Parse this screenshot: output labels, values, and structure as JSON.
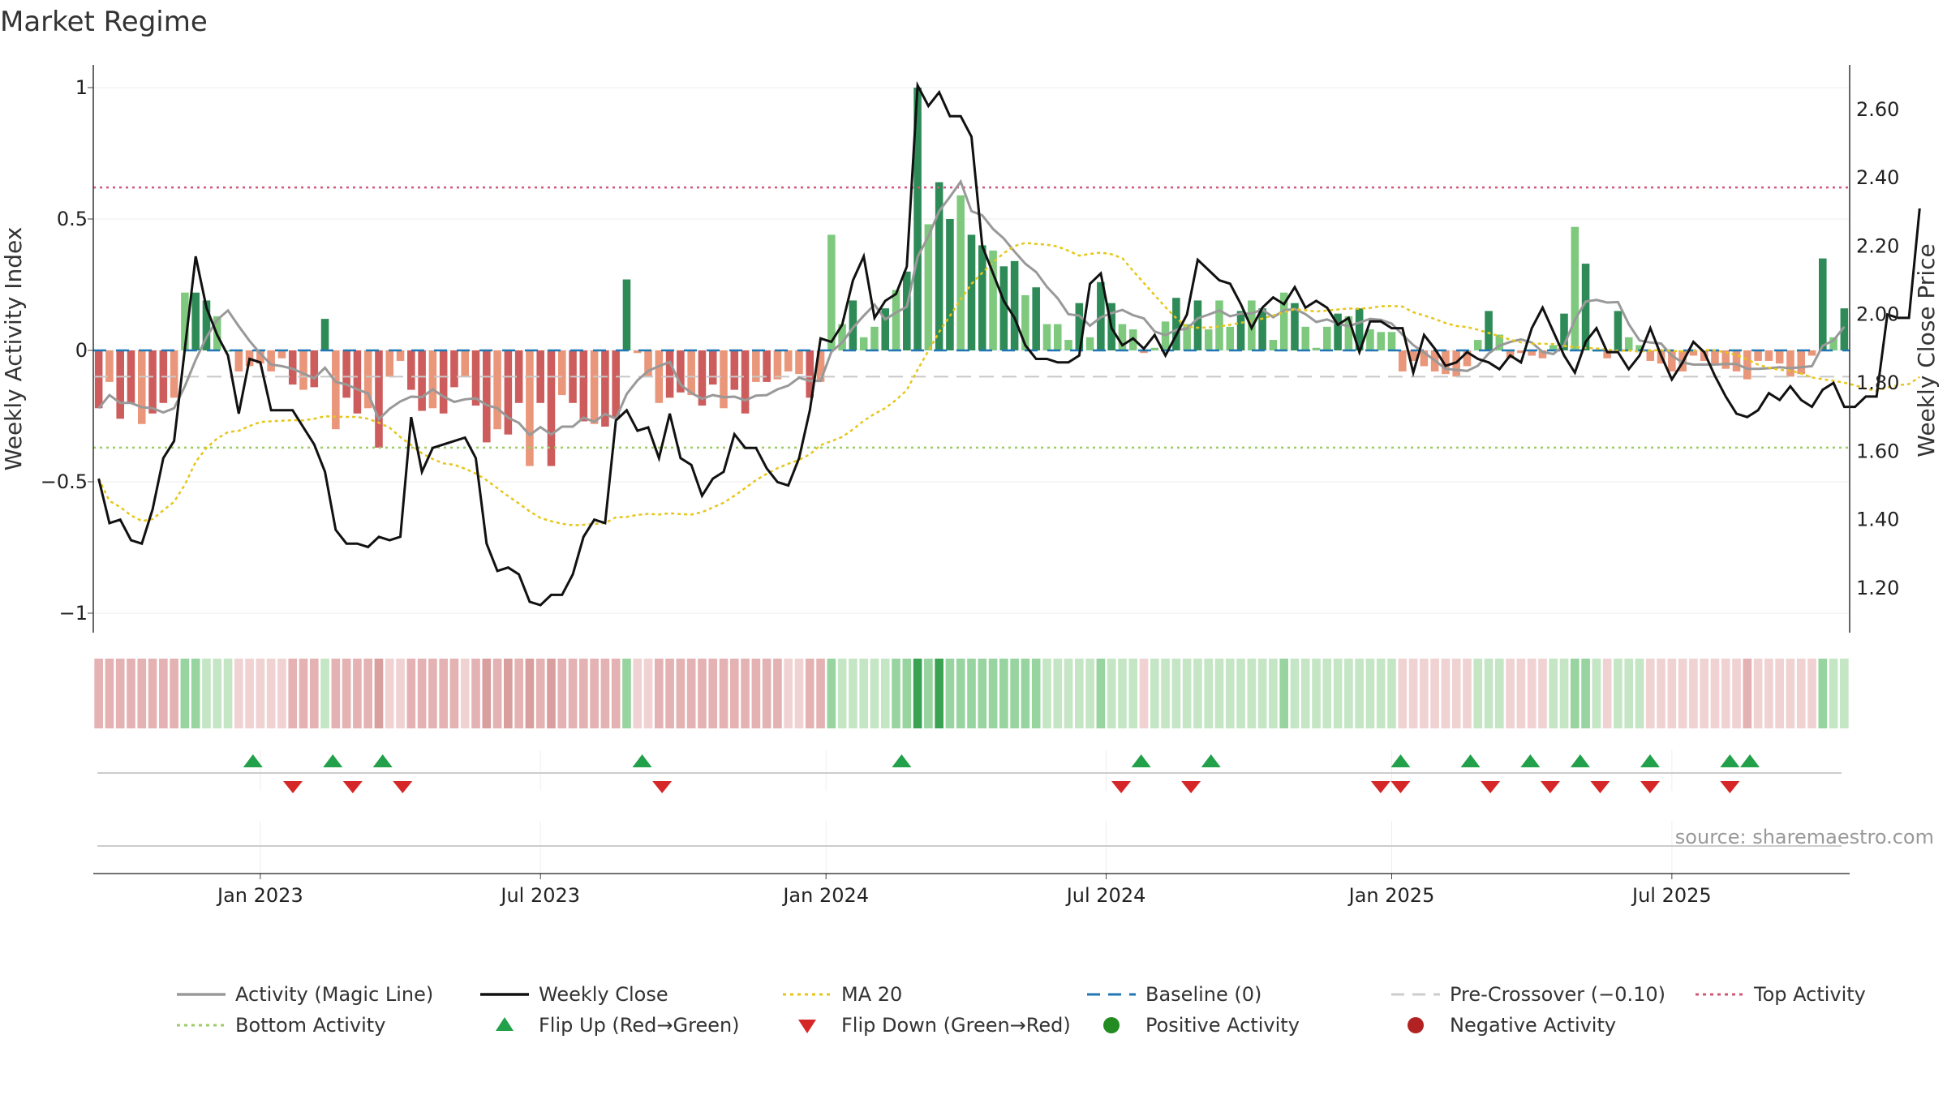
{
  "chart_data": {
    "type": "bar",
    "title": "Market Regime",
    "ylabel": "Weekly Activity Index",
    "y2label": "Weekly Close Price",
    "ylim": [
      -1.08,
      1.08
    ],
    "y2lim": [
      1.065,
      2.725
    ],
    "yticks": [
      {
        "v": 1,
        "t": "1"
      },
      {
        "v": 0.5,
        "t": "0.5"
      },
      {
        "v": 0,
        "t": "0"
      },
      {
        "v": -0.5,
        "t": "−0.5"
      },
      {
        "v": -1,
        "t": "−1"
      }
    ],
    "y2ticks": [
      {
        "v": 2.6,
        "t": "2.60"
      },
      {
        "v": 2.4,
        "t": "2.40"
      },
      {
        "v": 2.2,
        "t": "2.20"
      },
      {
        "v": 2.0,
        "t": "2.00"
      },
      {
        "v": 1.8,
        "t": "1.80"
      },
      {
        "v": 1.6,
        "t": "1.60"
      },
      {
        "v": 1.4,
        "t": "1.40"
      },
      {
        "v": 1.2,
        "t": "1.20"
      }
    ],
    "xticks": [
      {
        "w": 15,
        "t": "Jan 2023"
      },
      {
        "w": 41,
        "t": "Jul 2023"
      },
      {
        "w": 67.5,
        "t": "Jan 2024"
      },
      {
        "w": 93.5,
        "t": "Jul 2024"
      },
      {
        "w": 120,
        "t": "Jan 2025"
      },
      {
        "w": 146,
        "t": "Jul 2025"
      }
    ],
    "source": "source: sharemaestro.com",
    "levels": {
      "top_activity": 0.62,
      "bottom_activity": -0.37,
      "pre_crossover": -0.1,
      "baseline": 0
    },
    "colors": {
      "pos_dark": "#2e8b57",
      "pos_light": "#7fc97f",
      "neg_dark": "#cd5c5c",
      "neg_light": "#e9967a",
      "close": "#111111",
      "ma20": "#e6c619",
      "magic": "#999999",
      "baseline": "#1f77b4",
      "top": "#d1587a",
      "bottom": "#9ccc65",
      "flip_up": "#22a04a",
      "flip_down": "#d62728",
      "pos_marker": "#228b22",
      "neg_marker": "#b22222"
    },
    "activity": [
      -0.22,
      -0.12,
      -0.26,
      -0.2,
      -0.28,
      -0.24,
      -0.2,
      -0.18,
      0.22,
      0.22,
      0.19,
      0.13,
      0,
      -0.08,
      -0.06,
      -0.05,
      -0.08,
      -0.03,
      -0.13,
      -0.15,
      -0.14,
      0.12,
      -0.3,
      -0.18,
      -0.24,
      -0.22,
      -0.37,
      -0.1,
      -0.04,
      -0.15,
      -0.23,
      -0.22,
      -0.24,
      -0.14,
      -0.1,
      -0.21,
      -0.35,
      -0.3,
      -0.32,
      -0.2,
      -0.44,
      -0.2,
      -0.44,
      -0.17,
      -0.2,
      -0.27,
      -0.28,
      -0.29,
      -0.26,
      0.27,
      -0.01,
      -0.1,
      -0.2,
      -0.18,
      -0.16,
      -0.17,
      -0.21,
      -0.13,
      -0.22,
      -0.15,
      -0.24,
      -0.12,
      -0.12,
      -0.11,
      -0.08,
      -0.09,
      -0.18,
      -0.12,
      0.44,
      0.1,
      0.19,
      0.05,
      0.09,
      0.16,
      0.23,
      0.3,
      1.0,
      0.48,
      0.64,
      0.5,
      0.59,
      0.44,
      0.4,
      0.38,
      0.32,
      0.34,
      0.21,
      0.24,
      0.1,
      0.1,
      0.04,
      0.18,
      0.05,
      0.26,
      0.18,
      0.1,
      0.08,
      -0.01,
      0.01,
      0.11,
      0.2,
      0.1,
      0.19,
      0.08,
      0.19,
      0.09,
      0.15,
      0.19,
      0.16,
      0.04,
      0.22,
      0.18,
      0.09,
      0.01,
      0.09,
      0.14,
      0.13,
      0.16,
      0.08,
      0.07,
      0.07,
      -0.08,
      -0.04,
      -0.06,
      -0.08,
      -0.09,
      -0.1,
      -0.06,
      0.04,
      0.15,
      0.06,
      -0.03,
      -0.01,
      -0.02,
      -0.03,
      0.02,
      0.14,
      0.47,
      0.33,
      0.0,
      -0.03,
      0.15,
      0.05,
      0.02,
      -0.04,
      -0.05,
      -0.08,
      -0.08,
      -0.02,
      -0.04,
      -0.05,
      -0.07,
      -0.08,
      -0.11,
      -0.04,
      -0.04,
      -0.05,
      -0.1,
      -0.09,
      -0.02,
      0.35,
      0.05,
      0.16
    ],
    "close": [
      1.52,
      1.39,
      1.4,
      1.34,
      1.33,
      1.43,
      1.58,
      1.63,
      1.9,
      2.17,
      2.02,
      1.94,
      1.88,
      1.71,
      1.87,
      1.86,
      1.72,
      1.72,
      1.72,
      1.67,
      1.62,
      1.54,
      1.37,
      1.33,
      1.33,
      1.32,
      1.35,
      1.34,
      1.35,
      1.7,
      1.54,
      1.61,
      1.62,
      1.63,
      1.64,
      1.58,
      1.33,
      1.25,
      1.26,
      1.24,
      1.16,
      1.15,
      1.18,
      1.18,
      1.24,
      1.35,
      1.4,
      1.39,
      1.69,
      1.72,
      1.66,
      1.67,
      1.58,
      1.71,
      1.58,
      1.56,
      1.47,
      1.52,
      1.54,
      1.65,
      1.61,
      1.61,
      1.55,
      1.51,
      1.5,
      1.58,
      1.72,
      1.93,
      1.92,
      1.97,
      2.1,
      2.17,
      1.99,
      2.04,
      2.06,
      2.14,
      2.67,
      2.61,
      2.65,
      2.58,
      2.58,
      2.52,
      2.2,
      2.12,
      2.04,
      1.99,
      1.91,
      1.87,
      1.87,
      1.86,
      1.86,
      1.88,
      2.09,
      2.12,
      1.96,
      1.91,
      1.93,
      1.9,
      1.94,
      1.88,
      1.94,
      2.0,
      2.16,
      2.13,
      2.1,
      2.09,
      2.03,
      1.96,
      2.02,
      2.05,
      2.03,
      2.08,
      2.02,
      2.04,
      2.02,
      1.97,
      1.99,
      1.89,
      1.98,
      1.98,
      1.96,
      1.96,
      1.83,
      1.94,
      1.9,
      1.85,
      1.86,
      1.89,
      1.87,
      1.86,
      1.84,
      1.88,
      1.86,
      1.96,
      2.02,
      1.95,
      1.88,
      1.83,
      1.92,
      1.96,
      1.89,
      1.89,
      1.84,
      1.88,
      1.96,
      1.88,
      1.81,
      1.86,
      1.92,
      1.89,
      1.82,
      1.76,
      1.71,
      1.7,
      1.72,
      1.77,
      1.75,
      1.79,
      1.75,
      1.73,
      1.78,
      1.8,
      1.73,
      1.73,
      1.76,
      1.76,
      2.0,
      1.99,
      1.99,
      2.31
    ]
  },
  "flips": {
    "up": [
      8,
      12,
      14.5,
      27.5,
      40.5,
      52.5,
      56,
      65.5,
      69,
      72,
      74.5,
      78,
      82,
      83
    ],
    "down": [
      10,
      13,
      15.5,
      28.5,
      51.5,
      55,
      64.5,
      65.5,
      70,
      73,
      75.5,
      78,
      82
    ]
  },
  "legend": [
    {
      "label": "Activity (Magic Line)",
      "kind": "line",
      "color": "#999999"
    },
    {
      "label": "Weekly Close",
      "kind": "line",
      "color": "#111111"
    },
    {
      "label": "MA 20",
      "kind": "dot",
      "color": "#e6c619"
    },
    {
      "label": "Baseline (0)",
      "kind": "dash",
      "color": "#1f77b4"
    },
    {
      "label": "Pre-Crossover (−0.10)",
      "kind": "dash",
      "color": "#cccccc"
    },
    {
      "label": "Top Activity",
      "kind": "dot",
      "color": "#d1587a"
    },
    {
      "label": "Bottom Activity",
      "kind": "dot",
      "color": "#9ccc65"
    },
    {
      "label": "Flip Up (Red→Green)",
      "kind": "tri-up",
      "color": "#22a04a"
    },
    {
      "label": "Flip Down (Green→Red)",
      "kind": "tri-down",
      "color": "#d62728"
    },
    {
      "label": "Positive Activity",
      "kind": "circle",
      "color": "#228b22"
    },
    {
      "label": "Negative Activity",
      "kind": "circle",
      "color": "#b22222"
    }
  ]
}
